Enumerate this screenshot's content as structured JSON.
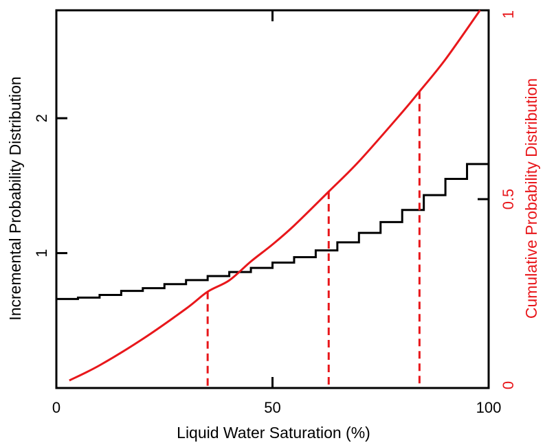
{
  "chart_data": {
    "type": "line",
    "xlabel": "Liquid Water Saturation (%)",
    "ylabel_left": "Incremental Probability Distribution",
    "ylabel_right": "Cumulative Probability Distribution",
    "xlim": [
      0,
      100
    ],
    "ylim_left": [
      0,
      2.8
    ],
    "ylim_right": [
      0,
      1
    ],
    "x_ticks": [
      {
        "value": 0,
        "label": "0"
      },
      {
        "value": 50,
        "label": "50"
      },
      {
        "value": 100,
        "label": "100"
      }
    ],
    "y_left_ticks": [
      {
        "value": 1,
        "label": "1"
      },
      {
        "value": 2,
        "label": "2"
      }
    ],
    "y_right_ticks": [
      {
        "value": 0,
        "label": "0"
      },
      {
        "value": 0.5,
        "label": "0.5"
      },
      {
        "value": 1,
        "label": "1"
      }
    ],
    "colors": {
      "incremental": "#000000",
      "cumulative": "#e8171b",
      "markers": "#e8171b",
      "axes": "#000000"
    },
    "series": [
      {
        "kind": "step",
        "axis": "left",
        "color": "#000000",
        "x_edges": [
          0,
          5,
          10,
          15,
          20,
          25,
          30,
          35,
          40,
          45,
          50,
          55,
          60,
          65,
          70,
          75,
          80,
          85,
          90,
          95,
          100
        ],
        "values": [
          0.66,
          0.67,
          0.69,
          0.72,
          0.74,
          0.77,
          0.8,
          0.83,
          0.86,
          0.89,
          0.93,
          0.97,
          1.02,
          1.08,
          1.15,
          1.23,
          1.32,
          1.43,
          1.55,
          1.66,
          1.8
        ]
      },
      {
        "kind": "line",
        "axis": "right",
        "color": "#e8171b",
        "x": [
          3,
          10,
          20,
          30,
          35,
          40,
          45,
          50,
          55,
          63,
          70,
          80,
          84,
          90,
          98
        ],
        "y": [
          0.02,
          0.06,
          0.13,
          0.21,
          0.255,
          0.285,
          0.335,
          0.38,
          0.43,
          0.52,
          0.6,
          0.73,
          0.785,
          0.87,
          1.0
        ]
      }
    ],
    "markers": [
      {
        "x": 35,
        "y_right": 0.255
      },
      {
        "x": 63,
        "y_right": 0.52
      },
      {
        "x": 84,
        "y_right": 0.785
      }
    ]
  }
}
